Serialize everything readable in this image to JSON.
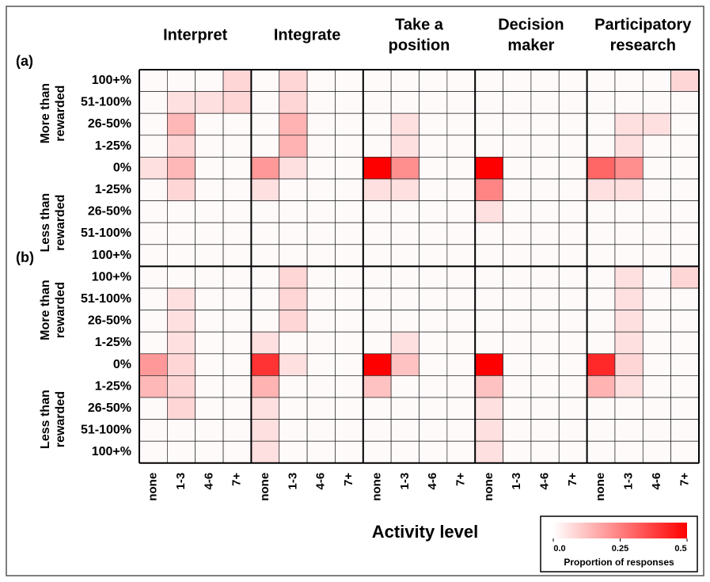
{
  "chart_data": {
    "type": "heatmap",
    "groups": [
      [
        "Interpret"
      ],
      [
        "Integrate"
      ],
      [
        "Take a",
        "position"
      ],
      [
        "Decision",
        "maker"
      ],
      [
        "Participatory",
        "research"
      ]
    ],
    "activity_levels": [
      "none",
      "1-3",
      "4-6",
      "7+"
    ],
    "row_labels": [
      "100+%",
      "51-100%",
      "26-50%",
      "1-25%",
      "0%",
      "1-25%",
      "26-50%",
      "51-100%",
      "100+%"
    ],
    "side_labels": [
      [
        "More than",
        "rewarded"
      ],
      [
        "Less than",
        "rewarded"
      ]
    ],
    "xlabel": "Activity level",
    "colorbar": {
      "label": "Proportion of responses",
      "colors": [
        "#ffffff",
        "#ff0000"
      ],
      "lim": [
        0,
        0.5
      ],
      "ticks": [
        {
          "value": 0,
          "label": "0.0"
        },
        0.25,
        0.5
      ]
    },
    "panels": [
      {
        "label": "(a)",
        "values": [
          [
            0.01,
            0.01,
            0.01,
            0.08,
            0.01,
            0.08,
            0.01,
            0.01,
            0.01,
            0.01,
            0.01,
            0.01,
            0.01,
            0.01,
            0.01,
            0.01,
            0.01,
            0.01,
            0.01,
            0.08
          ],
          [
            0.01,
            0.06,
            0.06,
            0.08,
            0.01,
            0.08,
            0.01,
            0.01,
            0.01,
            0.01,
            0.01,
            0.01,
            0.01,
            0.01,
            0.01,
            0.01,
            0.01,
            0.01,
            0.01,
            0.01
          ],
          [
            0.01,
            0.14,
            0.01,
            0.01,
            0.01,
            0.15,
            0.01,
            0.01,
            0.01,
            0.06,
            0.01,
            0.01,
            0.01,
            0.01,
            0.01,
            0.01,
            0.01,
            0.06,
            0.06,
            0.01
          ],
          [
            0.01,
            0.08,
            0.01,
            0.01,
            0.01,
            0.15,
            0.01,
            0.01,
            0.01,
            0.06,
            0.01,
            0.01,
            0.01,
            0.01,
            0.01,
            0.01,
            0.01,
            0.06,
            0.01,
            0.01
          ],
          [
            0.06,
            0.14,
            0.01,
            0.01,
            0.2,
            0.06,
            0.01,
            0.01,
            0.5,
            0.22,
            0.01,
            0.01,
            0.5,
            0.01,
            0.01,
            0.01,
            0.3,
            0.22,
            0.01,
            0.01
          ],
          [
            0.01,
            0.08,
            0.01,
            0.01,
            0.06,
            0.01,
            0.01,
            0.01,
            0.06,
            0.06,
            0.01,
            0.01,
            0.24,
            0.01,
            0.01,
            0.01,
            0.06,
            0.06,
            0.01,
            0.01
          ],
          [
            0.01,
            0.01,
            0.01,
            0.01,
            0.01,
            0.01,
            0.01,
            0.01,
            0.01,
            0.01,
            0.01,
            0.01,
            0.06,
            0.01,
            0.01,
            0.01,
            0.01,
            0.01,
            0.01,
            0.01
          ],
          [
            0.01,
            0.01,
            0.01,
            0.01,
            0.01,
            0.01,
            0.01,
            0.01,
            0.01,
            0.01,
            0.01,
            0.01,
            0.01,
            0.01,
            0.01,
            0.01,
            0.01,
            0.01,
            0.01,
            0.01
          ],
          [
            0.01,
            0.01,
            0.01,
            0.01,
            0.01,
            0.01,
            0.01,
            0.01,
            0.01,
            0.01,
            0.01,
            0.01,
            0.01,
            0.01,
            0.01,
            0.01,
            0.01,
            0.01,
            0.01,
            0.01
          ]
        ]
      },
      {
        "label": "(b)",
        "values": [
          [
            0.01,
            0.01,
            0.01,
            0.01,
            0.01,
            0.08,
            0.01,
            0.01,
            0.01,
            0.01,
            0.01,
            0.01,
            0.01,
            0.01,
            0.01,
            0.01,
            0.01,
            0.06,
            0.01,
            0.08
          ],
          [
            0.01,
            0.06,
            0.01,
            0.01,
            0.01,
            0.08,
            0.01,
            0.01,
            0.01,
            0.01,
            0.01,
            0.01,
            0.01,
            0.01,
            0.01,
            0.01,
            0.01,
            0.06,
            0.01,
            0.01
          ],
          [
            0.01,
            0.06,
            0.01,
            0.01,
            0.01,
            0.08,
            0.01,
            0.01,
            0.01,
            0.01,
            0.01,
            0.01,
            0.01,
            0.01,
            0.01,
            0.01,
            0.01,
            0.06,
            0.01,
            0.01
          ],
          [
            0.01,
            0.06,
            0.01,
            0.01,
            0.06,
            0.01,
            0.01,
            0.01,
            0.01,
            0.06,
            0.01,
            0.01,
            0.01,
            0.01,
            0.01,
            0.01,
            0.01,
            0.06,
            0.01,
            0.01
          ],
          [
            0.2,
            0.08,
            0.01,
            0.01,
            0.4,
            0.06,
            0.01,
            0.01,
            0.5,
            0.12,
            0.01,
            0.01,
            0.5,
            0.01,
            0.01,
            0.01,
            0.42,
            0.08,
            0.01,
            0.01
          ],
          [
            0.14,
            0.08,
            0.01,
            0.01,
            0.15,
            0.01,
            0.01,
            0.01,
            0.12,
            0.01,
            0.01,
            0.01,
            0.12,
            0.01,
            0.01,
            0.01,
            0.15,
            0.06,
            0.01,
            0.01
          ],
          [
            0.01,
            0.08,
            0.01,
            0.01,
            0.06,
            0.01,
            0.01,
            0.01,
            0.01,
            0.01,
            0.01,
            0.01,
            0.06,
            0.01,
            0.01,
            0.01,
            0.01,
            0.01,
            0.01,
            0.01
          ],
          [
            0.01,
            0.01,
            0.01,
            0.01,
            0.06,
            0.01,
            0.01,
            0.01,
            0.01,
            0.01,
            0.01,
            0.01,
            0.06,
            0.01,
            0.01,
            0.01,
            0.01,
            0.01,
            0.01,
            0.01
          ],
          [
            0.01,
            0.01,
            0.01,
            0.01,
            0.06,
            0.01,
            0.01,
            0.01,
            0.01,
            0.01,
            0.01,
            0.01,
            0.06,
            0.01,
            0.01,
            0.01,
            0.01,
            0.01,
            0.01,
            0.01
          ]
        ]
      }
    ]
  }
}
